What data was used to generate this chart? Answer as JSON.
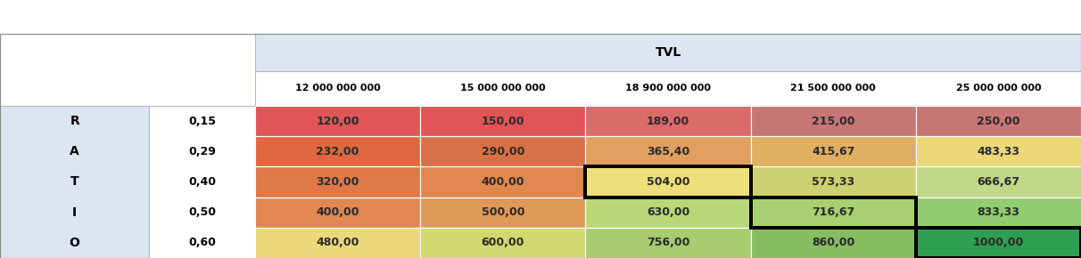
{
  "title_header": "TVL",
  "col_headers": [
    "12 000 000 000",
    "15 000 000 000",
    "18 900 000 000",
    "21 500 000 000",
    "25 000 000 000"
  ],
  "row_headers": [
    "0,15",
    "0,29",
    "0,40",
    "0,50",
    "0,60"
  ],
  "ratio_label": [
    "R",
    "A",
    "T",
    "I",
    "O"
  ],
  "values": [
    [
      "120,00",
      "150,00",
      "189,00",
      "215,00",
      "250,00"
    ],
    [
      "232,00",
      "290,00",
      "365,40",
      "415,67",
      "483,33"
    ],
    [
      "320,00",
      "400,00",
      "504,00",
      "573,33",
      "666,67"
    ],
    [
      "400,00",
      "500,00",
      "630,00",
      "716,67",
      "833,33"
    ],
    [
      "480,00",
      "600,00",
      "756,00",
      "860,00",
      "1000,00"
    ]
  ],
  "cell_colors": [
    [
      "#e05555",
      "#e05555",
      "#d96b6b",
      "#c87575",
      "#c87575"
    ],
    [
      "#e06840",
      "#d87048",
      "#e0a060",
      "#e0b060",
      "#ecd878"
    ],
    [
      "#e07848",
      "#e08850",
      "#eedf7a",
      "#ccd070",
      "#c0d888"
    ],
    [
      "#e08850",
      "#e09858",
      "#b8d878",
      "#a8d070",
      "#90cc70"
    ],
    [
      "#ecd878",
      "#d0d870",
      "#a8cc70",
      "#88bc60",
      "#2e9e52"
    ]
  ],
  "header_bg": "#dce6f1",
  "left_panel_bg": "#dce6f1",
  "figsize": [
    12.12,
    2.9
  ],
  "dpi": 100
}
